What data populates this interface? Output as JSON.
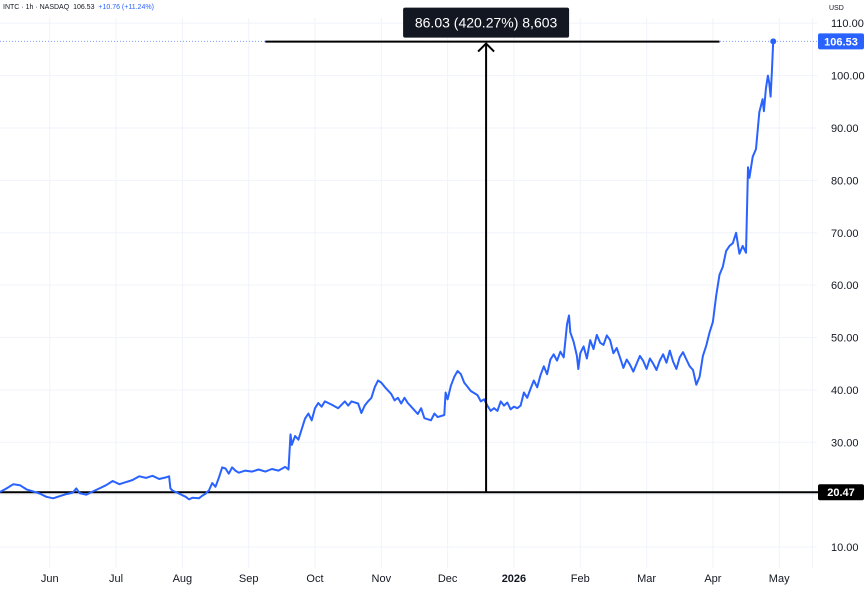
{
  "header": {
    "symbol": "INTC",
    "interval": "1h",
    "exchange": "NASDAQ",
    "price": "106.53",
    "change": "+10.76 (+11.24%)",
    "currency": "USD"
  },
  "colors": {
    "line": "#2962ff",
    "badge_last": "#2962ff",
    "badge_ref": "#000000",
    "measure_box": "#131722",
    "grid": "#f0f3fa"
  },
  "chart_data": {
    "type": "line",
    "title": "",
    "xlabel": "",
    "ylabel": "",
    "ylim": [
      6,
      111
    ],
    "xlim": [
      0,
      12.32
    ],
    "y_ticks": [
      10,
      20,
      30,
      40,
      50,
      60,
      70,
      80,
      90,
      100,
      110
    ],
    "y_tick_labels": [
      "10.00",
      "20.00",
      "30.00",
      "40.00",
      "50.00",
      "60.00",
      "70.00",
      "80.00",
      "90.00",
      "100.00",
      "110.00"
    ],
    "x_ticks": [
      0.75,
      1.75,
      2.75,
      3.75,
      4.75,
      5.75,
      6.75,
      7.75,
      8.75,
      9.75,
      10.75,
      11.75,
      12.25
    ],
    "x_tick_labels": [
      "Jun",
      "Jul",
      "Aug",
      "Sep",
      "Oct",
      "Nov",
      "Dec",
      "2026",
      "Feb",
      "Mar",
      "Apr",
      "May",
      ""
    ],
    "x_tick_bold": [
      false,
      false,
      false,
      false,
      false,
      false,
      false,
      true,
      false,
      false,
      false,
      false,
      false
    ],
    "grid": true,
    "series": [
      {
        "values": [
          [
            0.0,
            20.5
          ],
          [
            0.1,
            21.2
          ],
          [
            0.2,
            22.0
          ],
          [
            0.3,
            21.8
          ],
          [
            0.4,
            21.0
          ],
          [
            0.5,
            20.6
          ],
          [
            0.6,
            20.2
          ],
          [
            0.7,
            19.6
          ],
          [
            0.8,
            19.3
          ],
          [
            0.9,
            19.7
          ],
          [
            1.0,
            20.1
          ],
          [
            1.1,
            20.4
          ],
          [
            1.15,
            21.2
          ],
          [
            1.2,
            20.3
          ],
          [
            1.3,
            20.0
          ],
          [
            1.4,
            20.6
          ],
          [
            1.5,
            21.2
          ],
          [
            1.6,
            21.8
          ],
          [
            1.7,
            22.6
          ],
          [
            1.8,
            22.0
          ],
          [
            1.9,
            22.4
          ],
          [
            2.0,
            22.8
          ],
          [
            2.1,
            23.5
          ],
          [
            2.2,
            23.2
          ],
          [
            2.3,
            23.6
          ],
          [
            2.4,
            23.0
          ],
          [
            2.5,
            23.3
          ],
          [
            2.55,
            23.5
          ],
          [
            2.57,
            21.2
          ],
          [
            2.6,
            20.8
          ],
          [
            2.7,
            20.2
          ],
          [
            2.8,
            19.6
          ],
          [
            2.85,
            19.1
          ],
          [
            2.9,
            19.4
          ],
          [
            3.0,
            19.3
          ],
          [
            3.05,
            19.8
          ],
          [
            3.1,
            20.2
          ],
          [
            3.15,
            20.8
          ],
          [
            3.2,
            22.2
          ],
          [
            3.25,
            21.5
          ],
          [
            3.3,
            23.2
          ],
          [
            3.35,
            25.2
          ],
          [
            3.4,
            25.0
          ],
          [
            3.45,
            24.0
          ],
          [
            3.5,
            25.2
          ],
          [
            3.55,
            24.6
          ],
          [
            3.6,
            24.2
          ],
          [
            3.7,
            24.6
          ],
          [
            3.8,
            24.4
          ],
          [
            3.9,
            24.8
          ],
          [
            4.0,
            24.4
          ],
          [
            4.1,
            24.9
          ],
          [
            4.2,
            24.6
          ],
          [
            4.3,
            25.3
          ],
          [
            4.35,
            24.8
          ],
          [
            4.38,
            31.5
          ],
          [
            4.4,
            29.5
          ],
          [
            4.45,
            31.2
          ],
          [
            4.5,
            30.5
          ],
          [
            4.55,
            32.5
          ],
          [
            4.6,
            34.5
          ],
          [
            4.65,
            35.5
          ],
          [
            4.7,
            34.2
          ],
          [
            4.75,
            36.5
          ],
          [
            4.8,
            37.5
          ],
          [
            4.85,
            36.8
          ],
          [
            4.9,
            37.8
          ],
          [
            5.0,
            37.2
          ],
          [
            5.1,
            36.5
          ],
          [
            5.2,
            37.8
          ],
          [
            5.25,
            37.0
          ],
          [
            5.3,
            37.8
          ],
          [
            5.4,
            37.4
          ],
          [
            5.45,
            35.6
          ],
          [
            5.5,
            37.0
          ],
          [
            5.55,
            37.8
          ],
          [
            5.6,
            38.5
          ],
          [
            5.65,
            40.5
          ],
          [
            5.7,
            41.8
          ],
          [
            5.75,
            41.4
          ],
          [
            5.8,
            40.6
          ],
          [
            5.9,
            39.2
          ],
          [
            5.95,
            38.0
          ],
          [
            6.0,
            38.5
          ],
          [
            6.05,
            37.4
          ],
          [
            6.1,
            38.5
          ],
          [
            6.15,
            37.5
          ],
          [
            6.2,
            36.8
          ],
          [
            6.3,
            35.4
          ],
          [
            6.35,
            36.5
          ],
          [
            6.4,
            34.6
          ],
          [
            6.5,
            34.2
          ],
          [
            6.55,
            35.5
          ],
          [
            6.6,
            34.8
          ],
          [
            6.7,
            35.2
          ],
          [
            6.72,
            39.5
          ],
          [
            6.75,
            38.2
          ],
          [
            6.8,
            40.8
          ],
          [
            6.85,
            42.5
          ],
          [
            6.9,
            43.6
          ],
          [
            6.95,
            43.0
          ],
          [
            7.0,
            41.4
          ],
          [
            7.05,
            40.6
          ],
          [
            7.1,
            39.8
          ],
          [
            7.2,
            39.0
          ],
          [
            7.25,
            37.8
          ],
          [
            7.3,
            38.2
          ],
          [
            7.35,
            37.0
          ],
          [
            7.4,
            36.0
          ],
          [
            7.45,
            36.5
          ],
          [
            7.5,
            36.0
          ],
          [
            7.55,
            37.8
          ],
          [
            7.6,
            37.0
          ],
          [
            7.65,
            37.6
          ],
          [
            7.7,
            36.3
          ],
          [
            7.75,
            36.8
          ],
          [
            7.8,
            36.5
          ],
          [
            7.85,
            37.0
          ],
          [
            7.9,
            39.5
          ],
          [
            7.95,
            38.5
          ],
          [
            8.0,
            40.2
          ],
          [
            8.05,
            41.8
          ],
          [
            8.1,
            40.5
          ],
          [
            8.15,
            42.8
          ],
          [
            8.2,
            44.5
          ],
          [
            8.25,
            43.0
          ],
          [
            8.3,
            45.8
          ],
          [
            8.35,
            46.8
          ],
          [
            8.4,
            45.6
          ],
          [
            8.45,
            47.3
          ],
          [
            8.5,
            46.2
          ],
          [
            8.55,
            52.5
          ],
          [
            8.58,
            54.2
          ],
          [
            8.6,
            51.0
          ],
          [
            8.65,
            49.2
          ],
          [
            8.7,
            46.5
          ],
          [
            8.72,
            44.0
          ],
          [
            8.75,
            47.0
          ],
          [
            8.8,
            48.3
          ],
          [
            8.85,
            46.0
          ],
          [
            8.9,
            49.5
          ],
          [
            8.95,
            47.8
          ],
          [
            9.0,
            50.5
          ],
          [
            9.05,
            49.0
          ],
          [
            9.1,
            48.6
          ],
          [
            9.15,
            50.4
          ],
          [
            9.2,
            49.5
          ],
          [
            9.25,
            47.0
          ],
          [
            9.3,
            48.0
          ],
          [
            9.35,
            46.2
          ],
          [
            9.4,
            44.2
          ],
          [
            9.45,
            45.8
          ],
          [
            9.5,
            44.8
          ],
          [
            9.55,
            43.5
          ],
          [
            9.6,
            45.0
          ],
          [
            9.65,
            46.5
          ],
          [
            9.7,
            45.5
          ],
          [
            9.75,
            44.0
          ],
          [
            9.8,
            46.0
          ],
          [
            9.85,
            45.0
          ],
          [
            9.9,
            43.8
          ],
          [
            9.95,
            45.6
          ],
          [
            10.0,
            46.8
          ],
          [
            10.05,
            45.2
          ],
          [
            10.1,
            47.5
          ],
          [
            10.15,
            45.4
          ],
          [
            10.2,
            44.0
          ],
          [
            10.25,
            46.2
          ],
          [
            10.3,
            47.2
          ],
          [
            10.35,
            45.8
          ],
          [
            10.4,
            44.5
          ],
          [
            10.45,
            43.8
          ],
          [
            10.5,
            41.0
          ],
          [
            10.55,
            42.5
          ],
          [
            10.6,
            46.5
          ],
          [
            10.65,
            48.5
          ],
          [
            10.7,
            51.0
          ],
          [
            10.75,
            53.0
          ],
          [
            10.8,
            58.0
          ],
          [
            10.85,
            62.0
          ],
          [
            10.9,
            63.5
          ],
          [
            10.95,
            66.5
          ],
          [
            11.0,
            67.5
          ],
          [
            11.05,
            68.0
          ],
          [
            11.1,
            70.0
          ],
          [
            11.15,
            66.0
          ],
          [
            11.2,
            67.5
          ],
          [
            11.25,
            66.2
          ],
          [
            11.28,
            82.5
          ],
          [
            11.3,
            80.5
          ],
          [
            11.35,
            84.5
          ],
          [
            11.4,
            86.0
          ],
          [
            11.45,
            93.0
          ],
          [
            11.5,
            95.5
          ],
          [
            11.52,
            93.2
          ],
          [
            11.55,
            97.5
          ],
          [
            11.58,
            100.0
          ],
          [
            11.6,
            98.5
          ],
          [
            11.62,
            96.0
          ],
          [
            11.64,
            100.8
          ],
          [
            11.66,
            106.53
          ]
        ]
      }
    ],
    "last_value": 106.53,
    "last_value_label": "106.53",
    "reference_value": 20.47,
    "reference_value_label": "20.47",
    "reference_x_range": [
      0.0,
      12.32
    ],
    "measure": {
      "label": "86.03 (420.27%) 8,603",
      "x": 7.33,
      "y_from": 20.47,
      "y_to": 106.5,
      "x_range": [
        4.0,
        10.85
      ]
    }
  }
}
